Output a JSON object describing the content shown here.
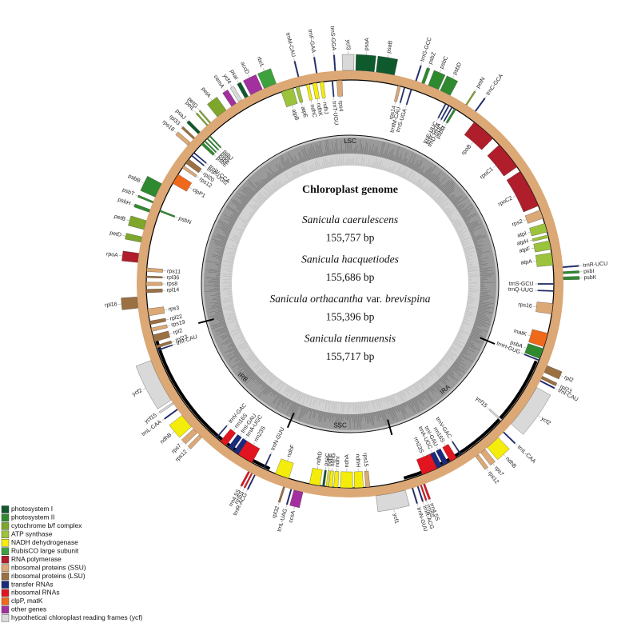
{
  "diagram": {
    "title": "Chloroplast genome",
    "genomes": [
      {
        "name": [
          "Sanicula caerulescens"
        ],
        "length": "155,757 bp"
      },
      {
        "name": [
          "Sanicula hacquetiodes"
        ],
        "length": "155,686 bp"
      },
      {
        "name": [
          "Sanicula orthacantha",
          "var.",
          "brevispina"
        ],
        "length": "155,396 bp"
      },
      {
        "name": [
          "Sanicula tienmuensis"
        ],
        "length": "155,717 bp"
      }
    ],
    "regions": [
      "LSC",
      "IRA",
      "SSC",
      "IRB"
    ],
    "legend": [
      {
        "label": "photosystem I",
        "color": "#0e5a2c",
        "genes": [
          "psaA",
          "psaB",
          "psaC",
          "psaI",
          "psaJ"
        ]
      },
      {
        "label": "photosystem II",
        "color": "#2f8a2f",
        "genes": [
          "psbZ",
          "psbC",
          "psbD",
          "psbM",
          "psbI",
          "psbK",
          "psbA",
          "psbN",
          "psbH",
          "psbT",
          "psbB",
          "psbE",
          "psbF",
          "psbL",
          "psbJ"
        ]
      },
      {
        "label": "cytochrome b/f complex",
        "color": "#7ea62b",
        "genes": [
          "petN",
          "petD",
          "petB",
          "petL",
          "petG",
          "petA"
        ]
      },
      {
        "label": "ATP synthase",
        "color": "#9cc33c",
        "genes": [
          "atpI",
          "atpH",
          "atpF",
          "atpA",
          "atpB",
          "atpE"
        ]
      },
      {
        "label": "NADH dehydrogenase",
        "color": "#f4ec0a",
        "genes": [
          "ndhJ",
          "ndhK",
          "ndhC",
          "ndhB",
          "ndhH",
          "ndhA",
          "ndhI",
          "ndhG",
          "ndhE",
          "ndhD",
          "ndhF",
          "ndhB"
        ]
      },
      {
        "label": "RubisCO large subunit",
        "color": "#3da23d",
        "genes": [
          "rbcL"
        ]
      },
      {
        "label": "RNA polymerase",
        "color": "#b01d2b",
        "genes": [
          "rpoB",
          "rpoC1",
          "rpoC2",
          "rpoA"
        ]
      },
      {
        "label": "ribosomal proteins (SSU)",
        "color": "#dba876",
        "genes": [
          "rps14",
          "rps2",
          "rps16",
          "rps7",
          "rps12",
          "rps15",
          "rps12",
          "rps7",
          "rps19",
          "rps3",
          "rps8",
          "rps11",
          "rps12",
          "rps18",
          "rps4"
        ]
      },
      {
        "label": "ribosomal proteins (LSU)",
        "color": "#9b7043",
        "genes": [
          "rpl2",
          "rpl23",
          "rpl32",
          "rpl23",
          "rpl2",
          "rpl22",
          "rpl16",
          "rpl14",
          "rpl36",
          "rpl20",
          "rpl33"
        ]
      },
      {
        "label": "transfer RNAs",
        "color": "#1b2a7c",
        "genes": [
          "trnM-CAU",
          "trnF-GAA",
          "trnT-UGU",
          "trnS-GGA",
          "trnfM-CAU",
          "trnS-UGA",
          "trnG-GCC",
          "trnE-UUC",
          "trnY-GUA",
          "trnD-GUC",
          "trnC-GCA",
          "trnR-UCU",
          "trnS-GCU",
          "trnQ-UUG",
          "trnH-GUG",
          "trnI-CAU",
          "trnL-CAA",
          "trnV-GAC",
          "trnI-GAU",
          "trnA-UGC",
          "trnR-ACG",
          "trnN-GUU",
          "trnL-UAG",
          "trnN-GUU",
          "trnR-ACG",
          "trnA-UGC",
          "trnI-GAU",
          "trnV-GAC",
          "trnL-CAA",
          "trnI-CAU",
          "trnP-UGG",
          "trnW-CCA"
        ]
      },
      {
        "label": "ribosomal RNAs",
        "color": "#e2141f",
        "genes": [
          "rrn16S",
          "rrn23S",
          "rrn4.5S",
          "rrn5S",
          "rrn5S",
          "rrn4.5S",
          "rrn23S",
          "rrn16S"
        ]
      },
      {
        "label": "clpP, matK",
        "color": "#f0691a",
        "genes": [
          "matK",
          "clpP1"
        ]
      },
      {
        "label": "other genes",
        "color": "#a3309f",
        "genes": [
          "ccsA",
          "cemA",
          "accD"
        ]
      },
      {
        "label": "hypothetical chloroplast reading frames (ycf)",
        "color": "#d9d9d9",
        "genes": [
          "ycf3",
          "ycf2",
          "ycf15",
          "ycf1",
          "ycf15",
          "ycf2",
          "ycf4"
        ]
      }
    ]
  }
}
